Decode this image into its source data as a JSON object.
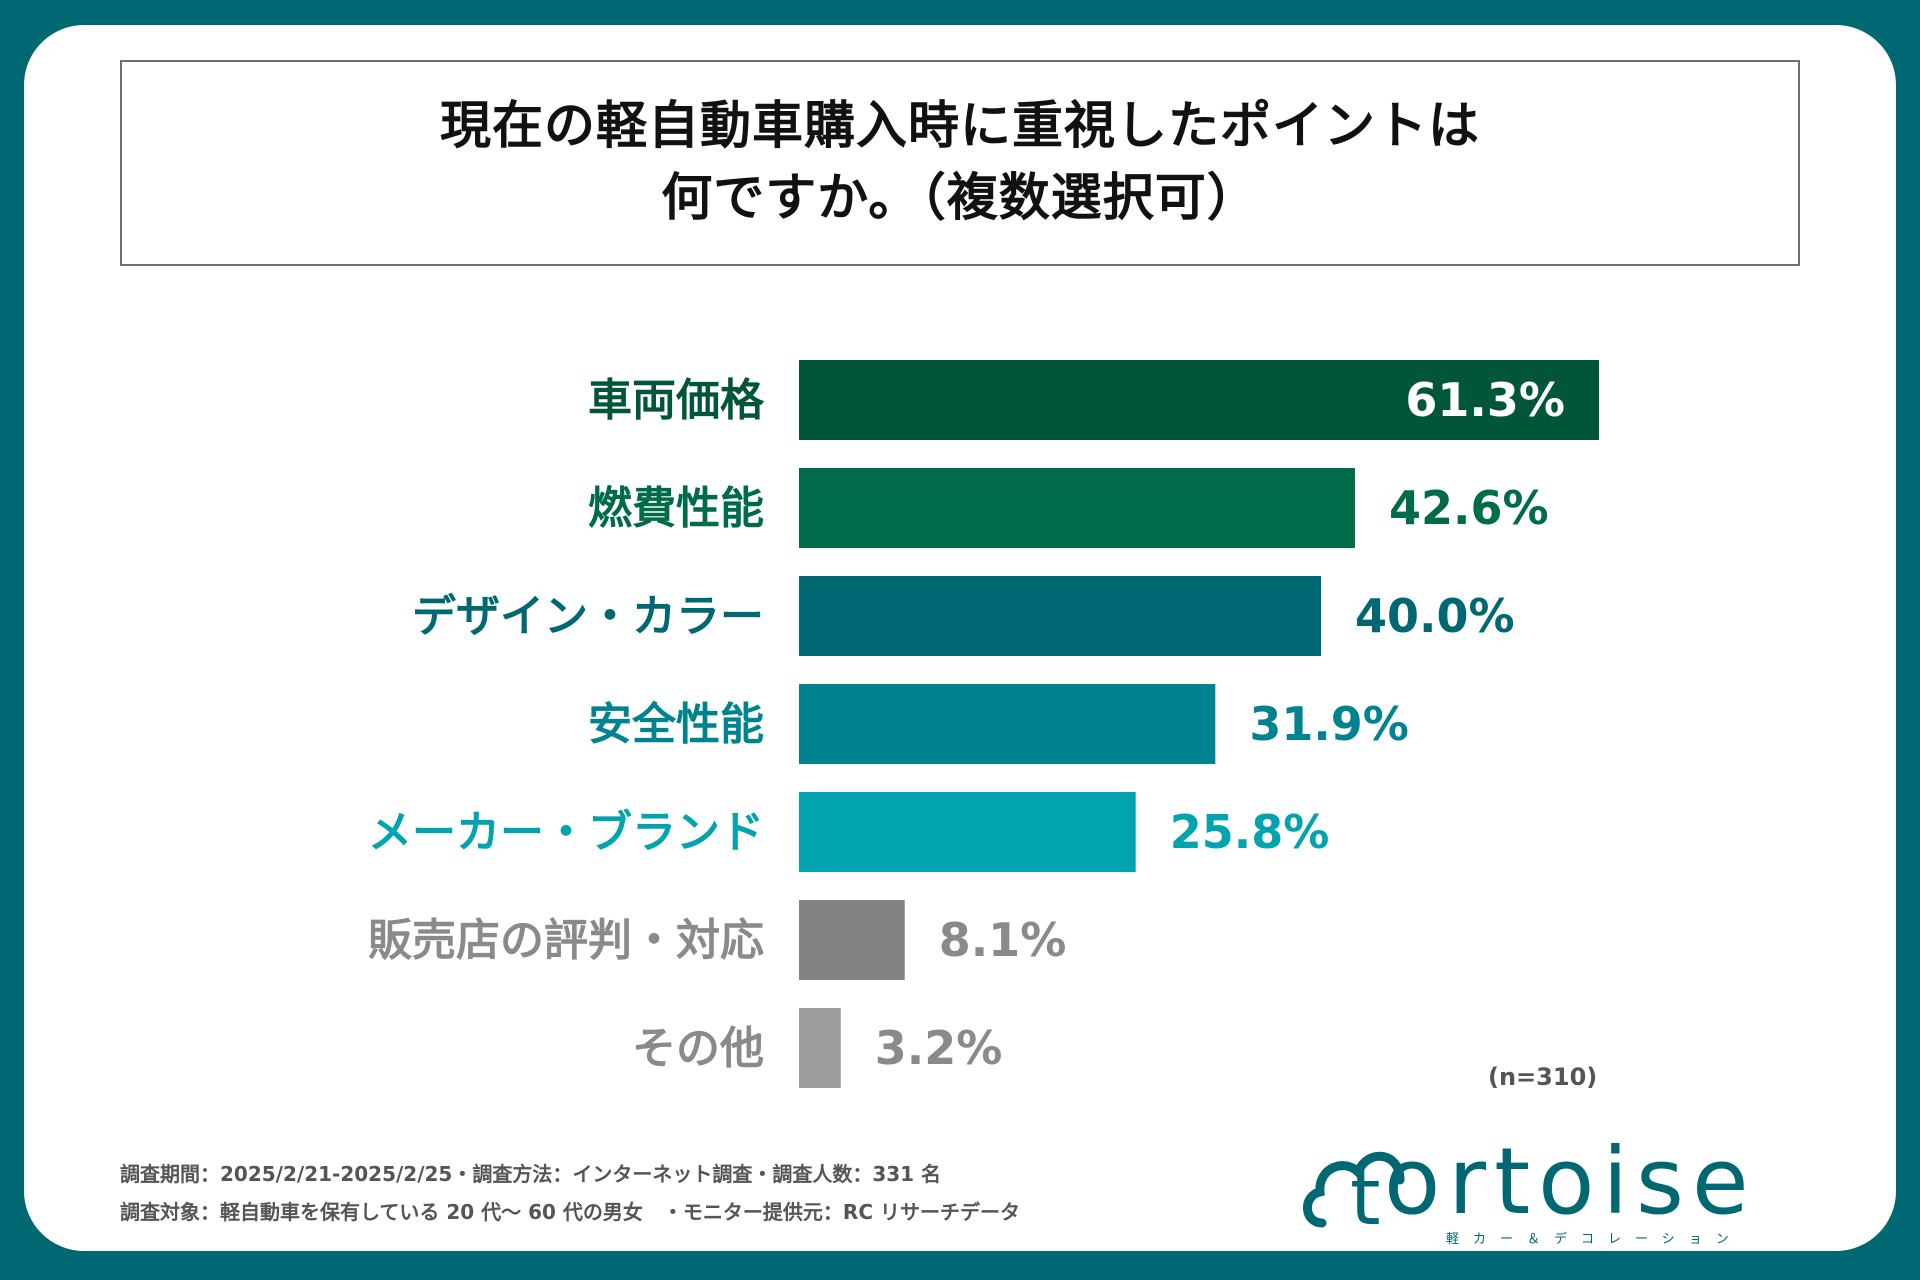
{
  "title": {
    "line1": "現在の軽自動車購入時に重視したポイントは",
    "line2": "何ですか。（複数選択可）"
  },
  "chart_data": {
    "type": "bar",
    "orientation": "horizontal",
    "title": "現在の軽自動車購入時に重視したポイントは何ですか。（複数選択可）",
    "categories": [
      "車両価格",
      "燃費性能",
      "デザイン・カラー",
      "安全性能",
      "メーカー・ブランド",
      "販売店の評判・対応",
      "その他"
    ],
    "values": [
      61.3,
      42.6,
      40.0,
      31.9,
      25.8,
      8.1,
      3.2
    ],
    "value_labels": [
      "61.3%",
      "42.6%",
      "40.0%",
      "31.9%",
      "25.8%",
      "8.1%",
      "3.2%"
    ],
    "bar_colors": [
      "#00553A",
      "#006B4B",
      "#006873",
      "#008391",
      "#00A3AE",
      "#828282",
      "#9D9D9D"
    ],
    "label_colors": [
      "#00553A",
      "#006B4B",
      "#006873",
      "#008391",
      "#00A3AE",
      "#8A8A8A",
      "#8A8A8A"
    ],
    "value_label_colors": [
      "#FFFFFF",
      "#006B4B",
      "#006873",
      "#008391",
      "#00A3AE",
      "#8A8A8A",
      "#8A8A8A"
    ],
    "xlim": [
      0,
      61.3
    ],
    "xlabel": "",
    "ylabel": "",
    "grid": false
  },
  "sample_note": "(n=310)",
  "footer": {
    "line1": "調査期間：2025/2/21-2025/2/25・調査方法：インターネット調査・調査人数：331 名",
    "line2": "調査対象：軽自動車を保有している 20 代～ 60 代の男女　・モニター提供元：RC リサーチデータ"
  },
  "logo": {
    "word": "ortoise",
    "letter": "t",
    "subtitle": "軽カー＆デコレーション",
    "color": "#006873"
  }
}
